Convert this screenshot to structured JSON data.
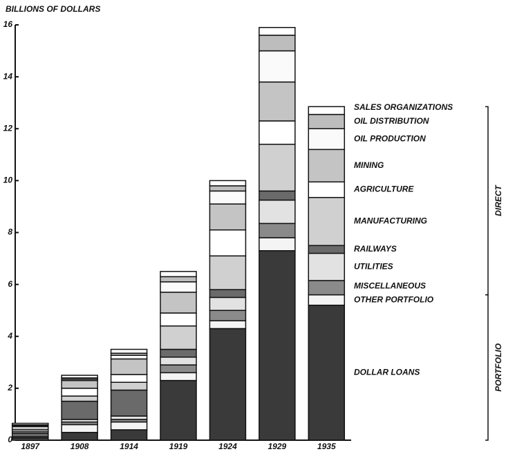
{
  "chart_data": {
    "type": "stacked_bar",
    "y_label": "BILLIONS OF DOLLARS",
    "categories": [
      "1897",
      "1908",
      "1914",
      "1919",
      "1924",
      "1929",
      "1935"
    ],
    "ylim": [
      0,
      16
    ],
    "yticks": [
      0,
      2,
      4,
      6,
      8,
      10,
      12,
      14,
      16
    ],
    "series": [
      {
        "name": "DOLLAR LOANS",
        "color": "#3a3a3a",
        "values": [
          0.01,
          0.3,
          0.4,
          2.3,
          4.3,
          7.3,
          5.2
        ]
      },
      {
        "name": "OTHER PORTFOLIO",
        "color": "#f4f4f4",
        "values": [
          0.05,
          0.3,
          0.3,
          0.3,
          0.3,
          0.5,
          0.4
        ]
      },
      {
        "name": "MISCELLANEOUS",
        "color": "#8a8a8a",
        "values": [
          0.05,
          0.1,
          0.1,
          0.3,
          0.4,
          0.55,
          0.55
        ]
      },
      {
        "name": "UTILITIES",
        "color": "#e2e2e2",
        "values": [
          0.02,
          0.1,
          0.13,
          0.3,
          0.5,
          0.9,
          1.05
        ]
      },
      {
        "name": "RAILWAYS",
        "color": "#6a6a6a",
        "values": [
          0.14,
          0.7,
          1.0,
          0.3,
          0.3,
          0.35,
          0.3
        ]
      },
      {
        "name": "MANUFACTURING",
        "color": "#d0d0d0",
        "values": [
          0.06,
          0.2,
          0.3,
          0.9,
          1.3,
          1.8,
          1.85
        ]
      },
      {
        "name": "AGRICULTURE",
        "color": "#ffffff",
        "values": [
          0.07,
          0.3,
          0.3,
          0.5,
          1.0,
          0.9,
          0.6
        ]
      },
      {
        "name": "MINING",
        "color": "#c4c4c4",
        "values": [
          0.13,
          0.3,
          0.6,
          0.8,
          1.0,
          1.5,
          1.25
        ]
      },
      {
        "name": "OIL PRODUCTION",
        "color": "#fafafa",
        "values": [
          0.02,
          0.05,
          0.14,
          0.4,
          0.5,
          1.2,
          0.8
        ]
      },
      {
        "name": "OIL DISTRIBUTION",
        "color": "#bdbdbd",
        "values": [
          0.04,
          0.05,
          0.08,
          0.2,
          0.2,
          0.6,
          0.55
        ]
      },
      {
        "name": "SALES ORGANIZATIONS",
        "color": "#ffffff",
        "values": [
          0.06,
          0.1,
          0.15,
          0.2,
          0.2,
          0.3,
          0.3
        ]
      }
    ],
    "groups": [
      {
        "label": "PORTFOLIO",
        "from": 0,
        "to": 1
      },
      {
        "label": "DIRECT",
        "from": 2,
        "to": 10
      }
    ]
  }
}
